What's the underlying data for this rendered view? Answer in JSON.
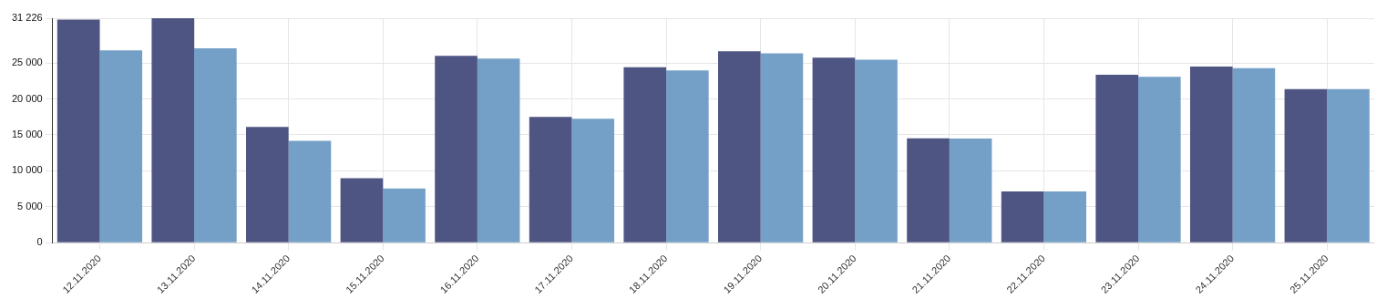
{
  "chart_data": {
    "type": "bar",
    "categories": [
      "12.11.2020",
      "13.11.2020",
      "14.11.2020",
      "15.11.2020",
      "16.11.2020",
      "17.11.2020",
      "18.11.2020",
      "19.11.2020",
      "20.11.2020",
      "21.11.2020",
      "22.11.2020",
      "23.11.2020",
      "24.11.2020",
      "25.11.2020"
    ],
    "series": [
      {
        "color": "#4e5582",
        "values": [
          31030,
          31226,
          16120,
          8970,
          26010,
          17490,
          24400,
          26630,
          25730,
          14510,
          7130,
          23360,
          24510,
          21370
        ]
      },
      {
        "color": "#74a0c7",
        "values": [
          26770,
          27050,
          14170,
          7550,
          25630,
          17250,
          23970,
          26340,
          25450,
          14480,
          7130,
          23080,
          24270,
          21370
        ]
      }
    ],
    "ylim": [
      0,
      31226
    ],
    "yticks": [
      {
        "value": 0,
        "label": "0"
      },
      {
        "value": 5000,
        "label": "5 000"
      },
      {
        "value": 10000,
        "label": "10 000"
      },
      {
        "value": 15000,
        "label": "15 000"
      },
      {
        "value": 20000,
        "label": "20 000"
      },
      {
        "value": 25000,
        "label": "25 000"
      },
      {
        "value": 31226,
        "label": "31 226"
      }
    ],
    "grid": true
  }
}
